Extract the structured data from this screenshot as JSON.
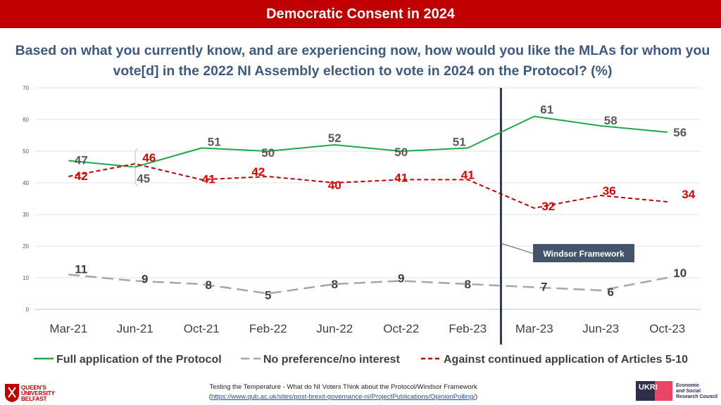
{
  "header": {
    "title": "Democratic Consent in 2024"
  },
  "subtitle": "Based on what you currently know, and are experiencing now, how would you like the MLAs for whom you vote[d] in the 2022 NI Assembly election to vote in 2024 on the Protocol? (%)",
  "chart_data": {
    "type": "line",
    "title": "Democratic Consent in 2024",
    "categories": [
      "Mar-21",
      "Jun-21",
      "Oct-21",
      "Feb-22",
      "Jun-22",
      "Oct-22",
      "Feb-23",
      "Mar-23",
      "Jun-23",
      "Oct-23"
    ],
    "y_ticks": [
      "0",
      "10",
      "20",
      "30",
      "40",
      "50",
      "60",
      "70"
    ],
    "ylim": [
      0,
      70
    ],
    "grid": true,
    "legend_position": "bottom",
    "series": [
      {
        "name": "Full application of the Protocol",
        "color": "#1fa84a",
        "dash": "solid",
        "values": [
          47,
          45,
          51,
          50,
          52,
          50,
          51,
          61,
          58,
          56
        ],
        "labels": [
          "47",
          "45",
          "51",
          "50",
          "52",
          "50",
          "51",
          "61",
          "58",
          "56"
        ],
        "label_color": "#595959"
      },
      {
        "name": "No preference/no interest",
        "color": "#a6a6a6",
        "dash": "long",
        "values": [
          11,
          9,
          8,
          5,
          8,
          9,
          8,
          7,
          6,
          10
        ],
        "labels": [
          "11",
          "9",
          "8",
          "5",
          "8",
          "9",
          "8",
          "7",
          "6",
          "10"
        ],
        "label_color": "#404040"
      },
      {
        "name": "Against continued application of Articles 5-10",
        "color": "#c00000",
        "dash": "short",
        "values": [
          42,
          46,
          41,
          42,
          40,
          41,
          41,
          32,
          36,
          34
        ],
        "labels": [
          "42",
          "46",
          "41",
          "42",
          "40",
          "41",
          "41",
          "32",
          "36",
          "34"
        ],
        "label_color": "#e00000"
      }
    ],
    "annotation": {
      "text": "Windsor Framework",
      "between": [
        "Feb-23",
        "Mar-23"
      ],
      "bg": "#44546a"
    }
  },
  "footer": {
    "line1": "Testing the Temperature - What do NI Voters Think about the Protocol/Windsor Framework",
    "line2_prefix": "(",
    "line2_link": "https://www.qub.ac.uk/sites/post-brexit-governance-ni/ProjectPublications/OpinionPolling/",
    "line2_suffix": ")"
  },
  "logos": {
    "qub_line1": "QUEEN'S",
    "qub_line2": "UNIVERSITY",
    "qub_line3": "BELFAST",
    "ukri": "UKRI",
    "esrc_line1": "Economic",
    "esrc_line2": "and Social",
    "esrc_line3": "Research Council"
  }
}
